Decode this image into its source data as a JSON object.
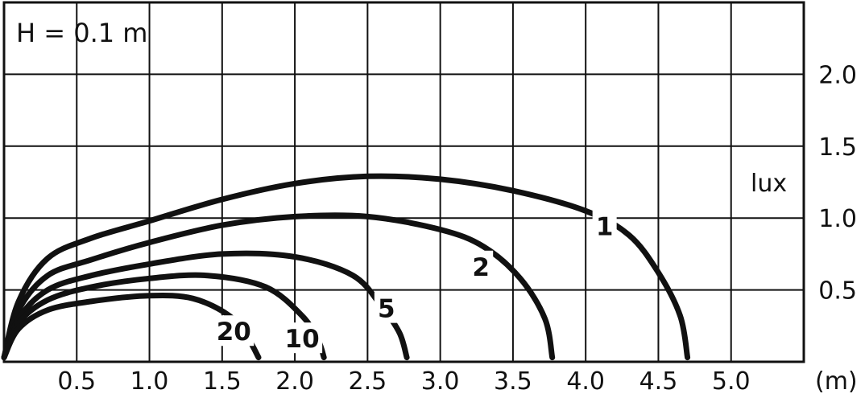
{
  "chart_data": {
    "type": "line",
    "title": "H = 0.1 m",
    "xlabel": "(m)",
    "ylabel": "lux",
    "xlim": [
      0,
      5.5
    ],
    "ylim": [
      0,
      2.5
    ],
    "x_ticks": [
      "0.5",
      "1.0",
      "1.5",
      "2.0",
      "2.5",
      "3.0",
      "3.5",
      "4.0",
      "4.5",
      "5.0"
    ],
    "y_ticks": [
      "0.5",
      "1.0",
      "1.5",
      "2.0"
    ],
    "grid": true,
    "series": [
      {
        "name": "1",
        "x": [
          0,
          0.1,
          0.3,
          0.6,
          1.0,
          1.5,
          2.0,
          2.5,
          3.0,
          3.5,
          4.0,
          4.3,
          4.5,
          4.65,
          4.7
        ],
        "y": [
          0.03,
          0.42,
          0.72,
          0.86,
          0.98,
          1.13,
          1.24,
          1.29,
          1.27,
          1.19,
          1.05,
          0.88,
          0.62,
          0.32,
          0.03
        ]
      },
      {
        "name": "2",
        "x": [
          0,
          0.1,
          0.3,
          0.6,
          1.0,
          1.5,
          2.0,
          2.5,
          3.0,
          3.3,
          3.55,
          3.72,
          3.77
        ],
        "y": [
          0.03,
          0.36,
          0.6,
          0.71,
          0.83,
          0.95,
          1.01,
          1.01,
          0.92,
          0.8,
          0.58,
          0.3,
          0.03
        ]
      },
      {
        "name": "5",
        "x": [
          0,
          0.1,
          0.3,
          0.6,
          1.0,
          1.5,
          2.0,
          2.4,
          2.6,
          2.72,
          2.77
        ],
        "y": [
          0.03,
          0.3,
          0.5,
          0.6,
          0.68,
          0.75,
          0.73,
          0.6,
          0.38,
          0.2,
          0.03
        ]
      },
      {
        "name": "10",
        "x": [
          0,
          0.1,
          0.3,
          0.6,
          1.0,
          1.4,
          1.8,
          2.05,
          2.16,
          2.2
        ],
        "y": [
          0.03,
          0.27,
          0.43,
          0.52,
          0.58,
          0.6,
          0.52,
          0.32,
          0.15,
          0.03
        ]
      },
      {
        "name": "20",
        "x": [
          0,
          0.1,
          0.3,
          0.6,
          1.0,
          1.3,
          1.55,
          1.68,
          1.75
        ],
        "y": [
          0.03,
          0.23,
          0.36,
          0.42,
          0.46,
          0.44,
          0.32,
          0.16,
          0.03
        ]
      }
    ],
    "curve_label_positions": [
      {
        "series": "1",
        "x": 4.13,
        "y": 0.93
      },
      {
        "series": "2",
        "x": 3.28,
        "y": 0.65
      },
      {
        "series": "5",
        "x": 2.63,
        "y": 0.36
      },
      {
        "series": "10",
        "x": 2.05,
        "y": 0.15
      },
      {
        "series": "20",
        "x": 1.58,
        "y": 0.2
      }
    ]
  }
}
